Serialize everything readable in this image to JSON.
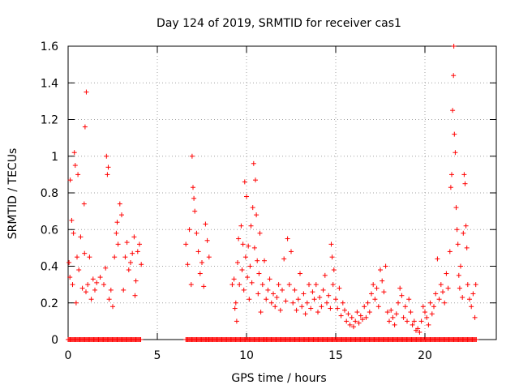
{
  "chart_data": {
    "type": "scatter",
    "title": "Day 124 of 2019, SRMTID for receiver cas1",
    "xlabel": "GPS time / hours",
    "ylabel": "SRMTID / TECUs",
    "xlim": [
      0,
      24
    ],
    "ylim": [
      0,
      1.6
    ],
    "x_ticks": [
      0,
      5,
      10,
      15,
      20
    ],
    "x_tick_labels": [
      "0",
      "5",
      "10",
      "15",
      "20"
    ],
    "y_ticks": [
      0,
      0.2,
      0.4,
      0.6,
      0.8,
      1,
      1.2,
      1.4,
      1.6
    ],
    "y_tick_labels": [
      "0",
      "0.2",
      "0.4",
      "0.6",
      "0.8",
      "1",
      "1.2",
      "1.4",
      "1.6"
    ],
    "grid": true,
    "marker": "+",
    "series": [
      {
        "name": "cas1",
        "color": "#ff0000",
        "points": [
          [
            0.05,
            0.42
          ],
          [
            0.1,
            0.34
          ],
          [
            0.12,
            0.87
          ],
          [
            0.2,
            0.65
          ],
          [
            0.25,
            0.3
          ],
          [
            0.3,
            0.58
          ],
          [
            0.35,
            1.02
          ],
          [
            0.4,
            0.95
          ],
          [
            0.45,
            0.2
          ],
          [
            0.5,
            0.45
          ],
          [
            0.55,
            0.9
          ],
          [
            0.6,
            0.38
          ],
          [
            0.7,
            0.56
          ],
          [
            0.8,
            0.28
          ],
          [
            0.9,
            0.74
          ],
          [
            0.92,
            0.47
          ],
          [
            0.95,
            1.16
          ],
          [
            1.0,
            0.26
          ],
          [
            1.02,
            1.35
          ],
          [
            1.1,
            0.3
          ],
          [
            1.2,
            0.45
          ],
          [
            1.3,
            0.22
          ],
          [
            1.4,
            0.33
          ],
          [
            1.5,
            0.27
          ],
          [
            1.6,
            0.31
          ],
          [
            1.8,
            0.34
          ],
          [
            2.0,
            0.3
          ],
          [
            2.1,
            0.39
          ],
          [
            2.15,
            1.0
          ],
          [
            2.2,
            0.9
          ],
          [
            2.25,
            0.94
          ],
          [
            2.3,
            0.22
          ],
          [
            2.4,
            0.27
          ],
          [
            2.5,
            0.18
          ],
          [
            2.6,
            0.45
          ],
          [
            2.7,
            0.58
          ],
          [
            2.75,
            0.64
          ],
          [
            2.8,
            0.52
          ],
          [
            2.9,
            0.74
          ],
          [
            3.0,
            0.68
          ],
          [
            3.1,
            0.27
          ],
          [
            3.2,
            0.45
          ],
          [
            3.3,
            0.53
          ],
          [
            3.4,
            0.38
          ],
          [
            3.5,
            0.42
          ],
          [
            3.6,
            0.47
          ],
          [
            3.7,
            0.56
          ],
          [
            3.75,
            0.24
          ],
          [
            3.8,
            0.32
          ],
          [
            3.9,
            0.48
          ],
          [
            4.0,
            0.52
          ],
          [
            4.1,
            0.41
          ],
          [
            6.6,
            0.52
          ],
          [
            6.7,
            0.41
          ],
          [
            6.8,
            0.6
          ],
          [
            6.9,
            0.3
          ],
          [
            6.95,
            1.0
          ],
          [
            7.0,
            0.83
          ],
          [
            7.05,
            0.77
          ],
          [
            7.1,
            0.7
          ],
          [
            7.2,
            0.58
          ],
          [
            7.3,
            0.48
          ],
          [
            7.4,
            0.36
          ],
          [
            7.5,
            0.42
          ],
          [
            7.6,
            0.29
          ],
          [
            7.7,
            0.63
          ],
          [
            7.8,
            0.54
          ],
          [
            7.9,
            0.45
          ],
          [
            9.2,
            0.3
          ],
          [
            9.3,
            0.33
          ],
          [
            9.35,
            0.17
          ],
          [
            9.4,
            0.2
          ],
          [
            9.45,
            0.1
          ],
          [
            9.5,
            0.42
          ],
          [
            9.55,
            0.55
          ],
          [
            9.6,
            0.3
          ],
          [
            9.7,
            0.62
          ],
          [
            9.75,
            0.38
          ],
          [
            9.8,
            0.52
          ],
          [
            9.85,
            0.27
          ],
          [
            9.9,
            0.86
          ],
          [
            9.95,
            0.45
          ],
          [
            10.0,
            0.78
          ],
          [
            10.05,
            0.34
          ],
          [
            10.1,
            0.51
          ],
          [
            10.15,
            0.22
          ],
          [
            10.2,
            0.4
          ],
          [
            10.25,
            0.62
          ],
          [
            10.3,
            0.31
          ],
          [
            10.35,
            0.72
          ],
          [
            10.4,
            0.96
          ],
          [
            10.45,
            0.5
          ],
          [
            10.5,
            0.87
          ],
          [
            10.55,
            0.68
          ],
          [
            10.6,
            0.43
          ],
          [
            10.65,
            0.25
          ],
          [
            10.7,
            0.36
          ],
          [
            10.75,
            0.58
          ],
          [
            10.8,
            0.15
          ],
          [
            10.9,
            0.3
          ],
          [
            11.0,
            0.43
          ],
          [
            11.1,
            0.22
          ],
          [
            11.2,
            0.27
          ],
          [
            11.3,
            0.33
          ],
          [
            11.4,
            0.2
          ],
          [
            11.5,
            0.25
          ],
          [
            11.6,
            0.18
          ],
          [
            11.7,
            0.23
          ],
          [
            11.8,
            0.3
          ],
          [
            11.9,
            0.16
          ],
          [
            12.0,
            0.27
          ],
          [
            12.1,
            0.44
          ],
          [
            12.2,
            0.21
          ],
          [
            12.3,
            0.55
          ],
          [
            12.4,
            0.3
          ],
          [
            12.5,
            0.48
          ],
          [
            12.6,
            0.2
          ],
          [
            12.7,
            0.27
          ],
          [
            12.8,
            0.16
          ],
          [
            12.9,
            0.22
          ],
          [
            13.0,
            0.36
          ],
          [
            13.1,
            0.18
          ],
          [
            13.2,
            0.25
          ],
          [
            13.3,
            0.14
          ],
          [
            13.4,
            0.2
          ],
          [
            13.5,
            0.3
          ],
          [
            13.6,
            0.17
          ],
          [
            13.7,
            0.26
          ],
          [
            13.8,
            0.22
          ],
          [
            13.9,
            0.3
          ],
          [
            14.0,
            0.15
          ],
          [
            14.1,
            0.23
          ],
          [
            14.2,
            0.18
          ],
          [
            14.3,
            0.27
          ],
          [
            14.4,
            0.35
          ],
          [
            14.5,
            0.2
          ],
          [
            14.6,
            0.24
          ],
          [
            14.7,
            0.17
          ],
          [
            14.75,
            0.52
          ],
          [
            14.8,
            0.45
          ],
          [
            14.85,
            0.3
          ],
          [
            14.9,
            0.38
          ],
          [
            15.0,
            0.22
          ],
          [
            15.1,
            0.17
          ],
          [
            15.2,
            0.28
          ],
          [
            15.3,
            0.13
          ],
          [
            15.4,
            0.2
          ],
          [
            15.5,
            0.16
          ],
          [
            15.6,
            0.1
          ],
          [
            15.7,
            0.14
          ],
          [
            15.8,
            0.08
          ],
          [
            15.9,
            0.12
          ],
          [
            16.0,
            0.07
          ],
          [
            16.1,
            0.1
          ],
          [
            16.2,
            0.15
          ],
          [
            16.3,
            0.09
          ],
          [
            16.4,
            0.13
          ],
          [
            16.5,
            0.11
          ],
          [
            16.6,
            0.18
          ],
          [
            16.7,
            0.12
          ],
          [
            16.8,
            0.2
          ],
          [
            16.9,
            0.15
          ],
          [
            17.0,
            0.25
          ],
          [
            17.1,
            0.3
          ],
          [
            17.2,
            0.22
          ],
          [
            17.3,
            0.28
          ],
          [
            17.4,
            0.18
          ],
          [
            17.5,
            0.38
          ],
          [
            17.6,
            0.32
          ],
          [
            17.7,
            0.26
          ],
          [
            17.8,
            0.4
          ],
          [
            17.9,
            0.15
          ],
          [
            18.0,
            0.1
          ],
          [
            18.1,
            0.16
          ],
          [
            18.2,
            0.12
          ],
          [
            18.3,
            0.08
          ],
          [
            18.4,
            0.14
          ],
          [
            18.5,
            0.2
          ],
          [
            18.6,
            0.28
          ],
          [
            18.7,
            0.24
          ],
          [
            18.8,
            0.12
          ],
          [
            18.9,
            0.18
          ],
          [
            19.0,
            0.1
          ],
          [
            19.1,
            0.22
          ],
          [
            19.2,
            0.15
          ],
          [
            19.3,
            0.08
          ],
          [
            19.4,
            0.1
          ],
          [
            19.5,
            0.05
          ],
          [
            19.6,
            0.06
          ],
          [
            19.7,
            0.04
          ],
          [
            19.8,
            0.1
          ],
          [
            19.9,
            0.18
          ],
          [
            20.0,
            0.15
          ],
          [
            20.1,
            0.12
          ],
          [
            20.2,
            0.08
          ],
          [
            20.3,
            0.2
          ],
          [
            20.4,
            0.14
          ],
          [
            20.5,
            0.18
          ],
          [
            20.6,
            0.25
          ],
          [
            20.7,
            0.44
          ],
          [
            20.8,
            0.22
          ],
          [
            20.9,
            0.3
          ],
          [
            21.0,
            0.26
          ],
          [
            21.1,
            0.2
          ],
          [
            21.2,
            0.36
          ],
          [
            21.3,
            0.28
          ],
          [
            21.4,
            0.48
          ],
          [
            21.45,
            0.83
          ],
          [
            21.5,
            0.9
          ],
          [
            21.55,
            1.25
          ],
          [
            21.6,
            1.44
          ],
          [
            21.62,
            1.6
          ],
          [
            21.65,
            1.12
          ],
          [
            21.7,
            1.02
          ],
          [
            21.75,
            0.72
          ],
          [
            21.8,
            0.6
          ],
          [
            21.85,
            0.52
          ],
          [
            21.9,
            0.35
          ],
          [
            21.95,
            0.28
          ],
          [
            22.0,
            0.4
          ],
          [
            22.1,
            0.23
          ],
          [
            22.15,
            0.58
          ],
          [
            22.2,
            0.9
          ],
          [
            22.25,
            0.85
          ],
          [
            22.3,
            0.62
          ],
          [
            22.35,
            0.5
          ],
          [
            22.4,
            0.3
          ],
          [
            22.5,
            0.22
          ],
          [
            22.6,
            0.18
          ],
          [
            22.7,
            0.25
          ],
          [
            22.8,
            0.12
          ],
          [
            22.85,
            0.3
          ]
        ]
      }
    ],
    "zero_bands": [
      [
        0.0,
        4.1
      ],
      [
        6.6,
        7.9
      ],
      [
        7.9,
        11.0
      ],
      [
        11.0,
        22.9
      ]
    ]
  }
}
